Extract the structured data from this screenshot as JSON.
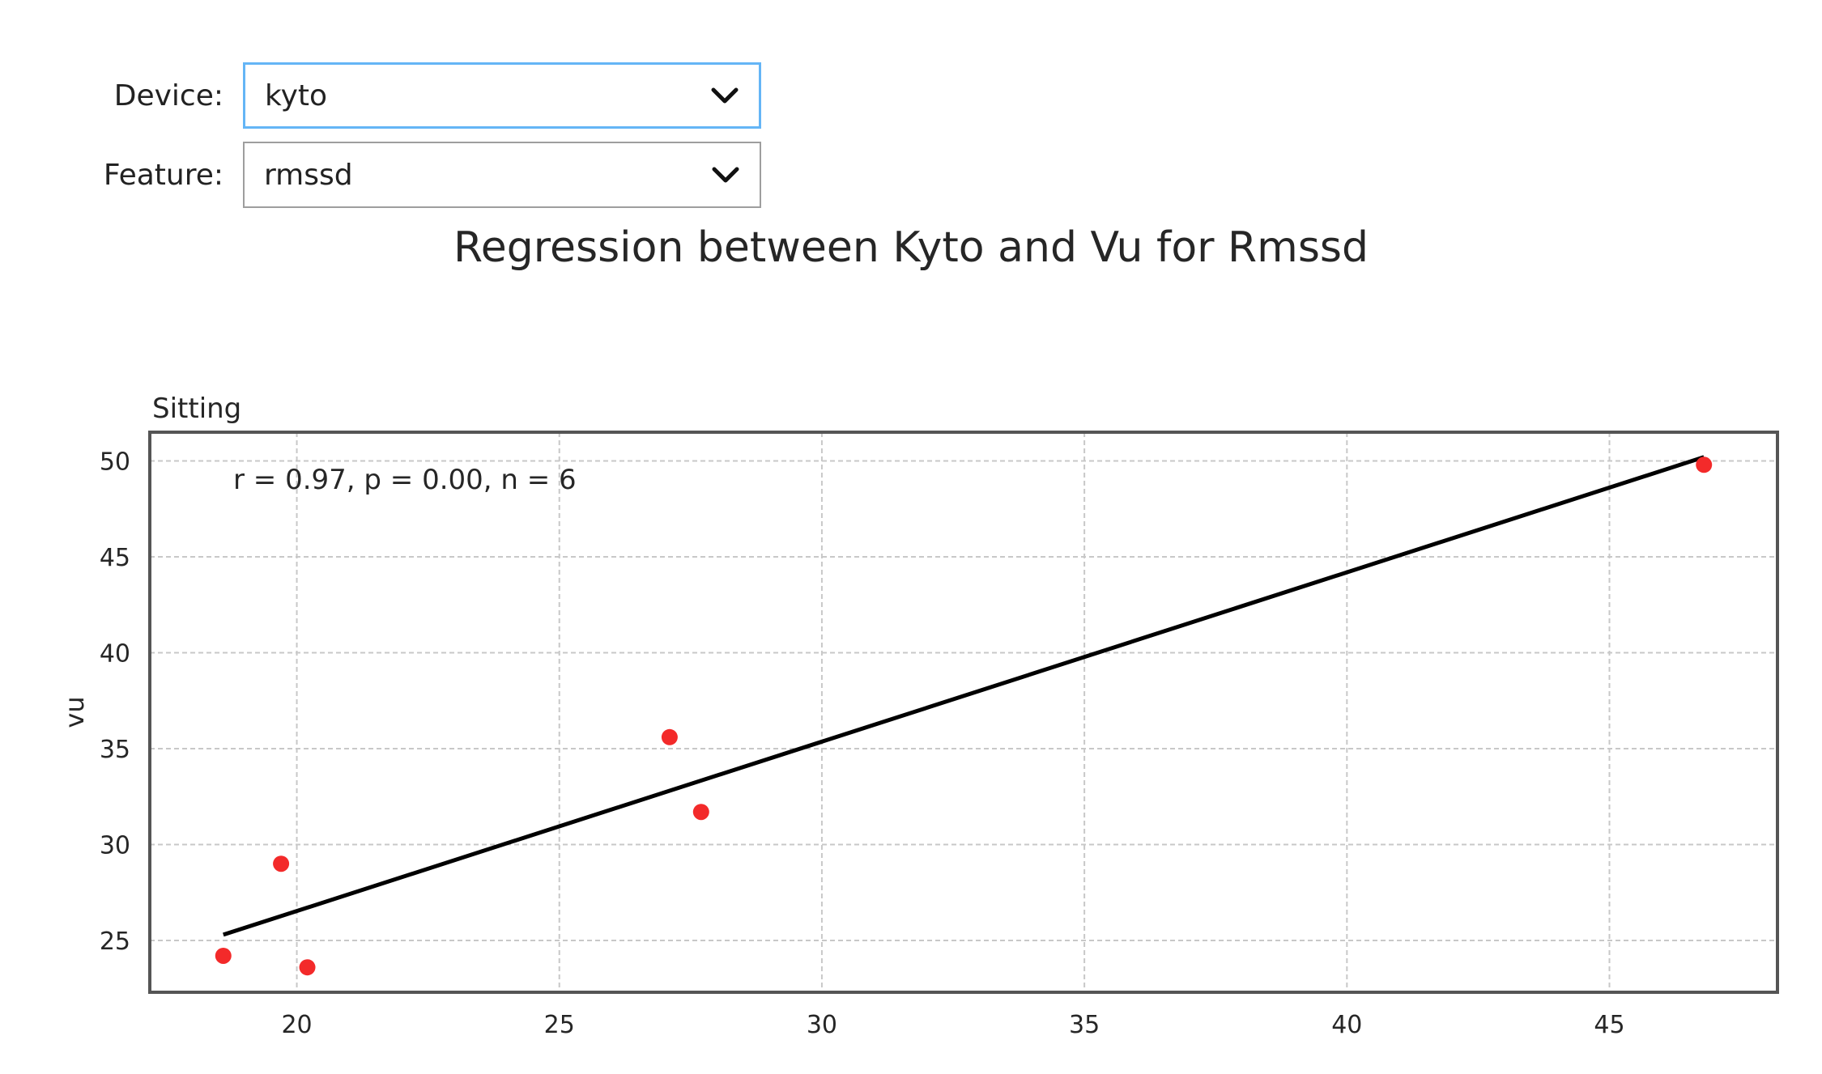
{
  "controls": {
    "device": {
      "label": "Device:",
      "value": "kyto"
    },
    "feature": {
      "label": "Feature:",
      "value": "rmssd"
    }
  },
  "chart_data": {
    "type": "scatter",
    "title": "Regression between Kyto and Vu for Rmssd",
    "subplot_title": "Sitting",
    "xlabel": "",
    "ylabel": "vu",
    "xlim": [
      17.2,
      48.2
    ],
    "ylim": [
      22.3,
      51.5
    ],
    "x_ticks": [
      20,
      25,
      30,
      35,
      40,
      45
    ],
    "y_ticks": [
      25,
      30,
      35,
      40,
      45,
      50
    ],
    "grid": true,
    "annotation": "r = 0.97, p = 0.00, n = 6",
    "points": [
      {
        "x": 18.6,
        "y": 24.2
      },
      {
        "x": 19.7,
        "y": 29.0
      },
      {
        "x": 20.2,
        "y": 23.6
      },
      {
        "x": 27.1,
        "y": 35.6
      },
      {
        "x": 27.7,
        "y": 31.7
      },
      {
        "x": 46.8,
        "y": 49.8
      }
    ],
    "regression_line": {
      "x": [
        18.6,
        46.8
      ],
      "y": [
        25.3,
        50.2
      ]
    },
    "colors": {
      "points": "#f32a2a",
      "line": "#000000",
      "grid": "#c8c8c8",
      "frame": "#555555"
    }
  }
}
